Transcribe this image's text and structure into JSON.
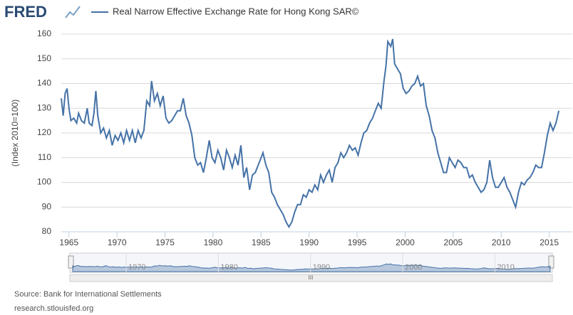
{
  "chart_data": {
    "type": "line",
    "logo": "FRED",
    "title": "Real Narrow Effective Exchange Rate for Hong Kong SAR©",
    "y_label": "(Index 2010=100)",
    "source": "Source: Bank for International Settlements",
    "url": "research.stlouisfed.org",
    "xlim": [
      1964.2,
      2017.4
    ],
    "xticks": [
      1965,
      1970,
      1975,
      1980,
      1985,
      1990,
      1995,
      2000,
      2005,
      2010,
      2015
    ],
    "ylim": [
      80,
      160
    ],
    "yticks": [
      80,
      90,
      100,
      110,
      120,
      130,
      140,
      150,
      160
    ],
    "grid": true,
    "navigator_xticks": [
      1970,
      1980,
      1990,
      2000,
      2010
    ],
    "x": [
      1964.2,
      1964.4,
      1964.6,
      1964.8,
      1965.0,
      1965.2,
      1965.5,
      1965.8,
      1966.0,
      1966.3,
      1966.6,
      1966.9,
      1967.1,
      1967.4,
      1967.6,
      1967.8,
      1968.0,
      1968.3,
      1968.6,
      1968.9,
      1969.2,
      1969.5,
      1969.8,
      1970.1,
      1970.4,
      1970.7,
      1971.0,
      1971.3,
      1971.6,
      1971.9,
      1972.2,
      1972.5,
      1972.8,
      1973.1,
      1973.4,
      1973.6,
      1973.9,
      1974.2,
      1974.5,
      1974.8,
      1975.1,
      1975.4,
      1975.7,
      1976.0,
      1976.3,
      1976.6,
      1976.9,
      1977.2,
      1977.5,
      1977.8,
      1978.1,
      1978.4,
      1978.7,
      1979.0,
      1979.3,
      1979.6,
      1979.9,
      1980.2,
      1980.5,
      1980.8,
      1981.1,
      1981.4,
      1981.7,
      1982.0,
      1982.3,
      1982.6,
      1982.9,
      1983.2,
      1983.5,
      1983.8,
      1984.1,
      1984.4,
      1984.7,
      1985.0,
      1985.2,
      1985.5,
      1985.8,
      1986.1,
      1986.4,
      1986.7,
      1987.0,
      1987.3,
      1987.6,
      1987.9,
      1988.2,
      1988.5,
      1988.8,
      1989.1,
      1989.4,
      1989.7,
      1990.0,
      1990.3,
      1990.6,
      1990.9,
      1991.2,
      1991.5,
      1991.8,
      1992.1,
      1992.4,
      1992.7,
      1993.0,
      1993.3,
      1993.6,
      1993.9,
      1994.2,
      1994.5,
      1994.8,
      1995.1,
      1995.4,
      1995.7,
      1996.0,
      1996.3,
      1996.6,
      1996.9,
      1997.2,
      1997.5,
      1997.8,
      1998.0,
      1998.2,
      1998.5,
      1998.7,
      1998.9,
      1999.2,
      1999.5,
      1999.8,
      2000.1,
      2000.4,
      2000.7,
      2001.0,
      2001.3,
      2001.6,
      2001.9,
      2002.2,
      2002.5,
      2002.8,
      2003.1,
      2003.4,
      2003.7,
      2004.0,
      2004.3,
      2004.6,
      2004.9,
      2005.2,
      2005.5,
      2005.8,
      2006.1,
      2006.4,
      2006.7,
      2007.0,
      2007.3,
      2007.6,
      2007.9,
      2008.2,
      2008.5,
      2008.8,
      2009.1,
      2009.4,
      2009.7,
      2010.0,
      2010.3,
      2010.6,
      2010.9,
      2011.2,
      2011.5,
      2011.8,
      2012.1,
      2012.4,
      2012.7,
      2013.0,
      2013.3,
      2013.6,
      2013.9,
      2014.2,
      2014.5,
      2014.8,
      2015.1,
      2015.4,
      2015.7,
      2016.0
    ],
    "series": [
      {
        "name": "Real Narrow Effective Exchange Rate for Hong Kong SAR©",
        "color": "#4572a7",
        "values": [
          134,
          127,
          136,
          138,
          130,
          125,
          126,
          124,
          128,
          125,
          124,
          130,
          124,
          123,
          128,
          137,
          127,
          120,
          122,
          118,
          121,
          115,
          119,
          117,
          120,
          116,
          121,
          117,
          121,
          116,
          121,
          118,
          121,
          133,
          131,
          141,
          133,
          136,
          131,
          135,
          126,
          124,
          125,
          127,
          129,
          129,
          134,
          127,
          124,
          119,
          110,
          107,
          108,
          104,
          110,
          117,
          110,
          108,
          113,
          110,
          105,
          113,
          110,
          106,
          111,
          107,
          115,
          102,
          106,
          97,
          103,
          104,
          107,
          110,
          112,
          107,
          104,
          96,
          94,
          91,
          89,
          87,
          84,
          82,
          84,
          88,
          91,
          91,
          95,
          94,
          97,
          96,
          99,
          97,
          103,
          100,
          103,
          105,
          100,
          106,
          108,
          112,
          110,
          112,
          115,
          113,
          114,
          111,
          116,
          120,
          121,
          124,
          126,
          129,
          132,
          130,
          141,
          147,
          157,
          155,
          158,
          148,
          146,
          144,
          138,
          136,
          137,
          139,
          140,
          143,
          139,
          140,
          131,
          127,
          121,
          118,
          112,
          108,
          104,
          104,
          110,
          108,
          106,
          109,
          108,
          106,
          106,
          102,
          103,
          100,
          98,
          96,
          97,
          100,
          109,
          102,
          98,
          98,
          100,
          102,
          98,
          96,
          93,
          90,
          96,
          100,
          99,
          101,
          102,
          104,
          107,
          106,
          106,
          112,
          119,
          124,
          121,
          124,
          129
        ]
      }
    ]
  }
}
